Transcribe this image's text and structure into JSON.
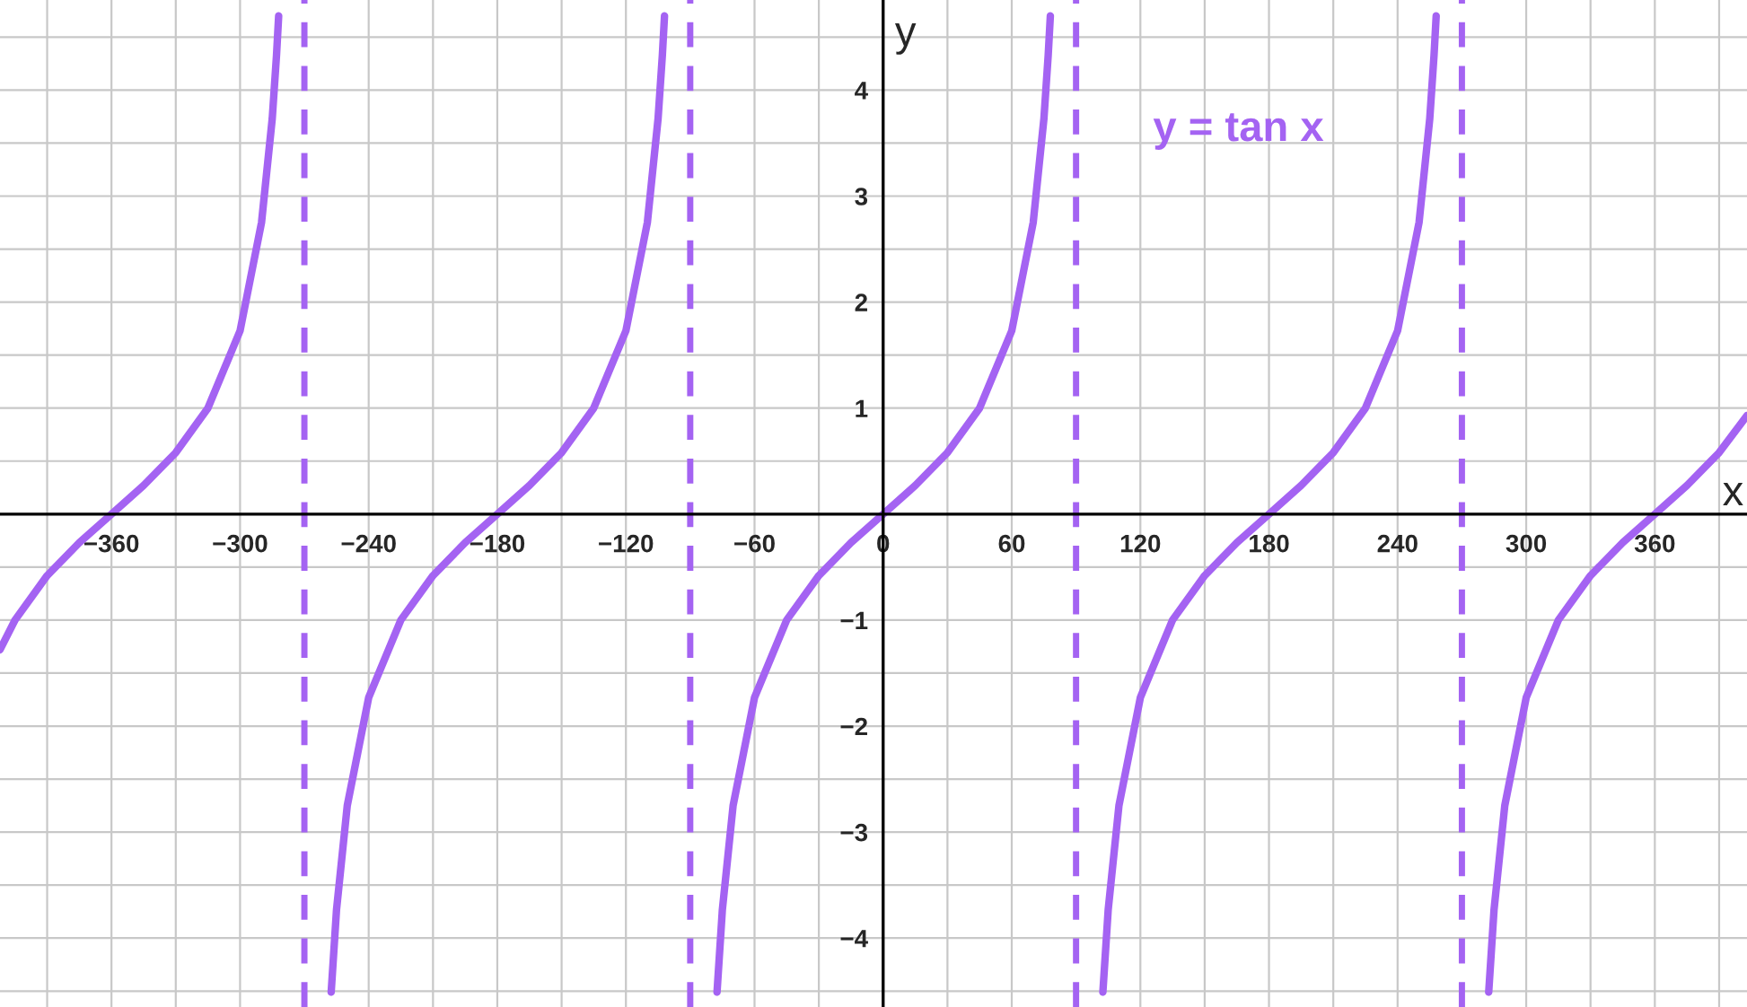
{
  "chart_data": {
    "type": "line",
    "xlabel": "x",
    "ylabel": "y",
    "xlim": [
      -412,
      403
    ],
    "ylim": [
      -4.65,
      4.85
    ],
    "xticks": [
      {
        "value": -390,
        "label": null
      },
      {
        "value": -360,
        "label": "−360"
      },
      {
        "value": -330,
        "label": null
      },
      {
        "value": -300,
        "label": "−300"
      },
      {
        "value": -240,
        "label": "−240"
      },
      {
        "value": -210,
        "label": null
      },
      {
        "value": -180,
        "label": "−180"
      },
      {
        "value": -150,
        "label": null
      },
      {
        "value": -120,
        "label": "−120"
      },
      {
        "value": -60,
        "label": "−60"
      },
      {
        "value": -30,
        "label": null
      },
      {
        "value": 0,
        "label": "0"
      },
      {
        "value": 30,
        "label": null
      },
      {
        "value": 60,
        "label": "60"
      },
      {
        "value": 120,
        "label": "120"
      },
      {
        "value": 150,
        "label": null
      },
      {
        "value": 180,
        "label": "180"
      },
      {
        "value": 210,
        "label": null
      },
      {
        "value": 240,
        "label": "240"
      },
      {
        "value": 300,
        "label": "300"
      },
      {
        "value": 330,
        "label": null
      },
      {
        "value": 360,
        "label": "360"
      },
      {
        "value": 390,
        "label": null
      }
    ],
    "yticks": [
      {
        "value": -4.5,
        "label": null
      },
      {
        "value": -4,
        "label": "−4"
      },
      {
        "value": -3.5,
        "label": null
      },
      {
        "value": -3,
        "label": "−3"
      },
      {
        "value": -2.5,
        "label": null
      },
      {
        "value": -2,
        "label": "−2"
      },
      {
        "value": -1.5,
        "label": null
      },
      {
        "value": -1,
        "label": "−1"
      },
      {
        "value": -0.5,
        "label": null
      },
      {
        "value": 0,
        "label": null
      },
      {
        "value": 0.5,
        "label": null
      },
      {
        "value": 1,
        "label": "1"
      },
      {
        "value": 1.5,
        "label": null
      },
      {
        "value": 2,
        "label": "2"
      },
      {
        "value": 2.5,
        "label": null
      },
      {
        "value": 3,
        "label": "3"
      },
      {
        "value": 3.5,
        "label": null
      },
      {
        "value": 4,
        "label": "4"
      },
      {
        "value": 4.5,
        "label": null
      }
    ],
    "grid": true,
    "legend": false,
    "marker": "none",
    "line_style": "solid",
    "series": [
      {
        "name": "y = tan x",
        "color": "#a463f2",
        "x": [
          -412,
          -405,
          -390,
          -375,
          -360,
          -345,
          -330,
          -315,
          -300,
          -290,
          -285,
          -283,
          -282,
          -270,
          -257.5,
          -255,
          -250,
          -240,
          -225,
          -210,
          -195,
          -180,
          -165,
          -150,
          -135,
          -120,
          -110,
          -105,
          -103,
          -102,
          -90,
          -77.5,
          -75,
          -70,
          -60,
          -45,
          -30,
          -15,
          0,
          15,
          30,
          45,
          60,
          70,
          75,
          77,
          78,
          90,
          102.5,
          105,
          110,
          120,
          135,
          150,
          165,
          180,
          195,
          210,
          225,
          240,
          250,
          255,
          257,
          258,
          270,
          282.5,
          285,
          290,
          300,
          315,
          330,
          345,
          360,
          375,
          390,
          403
        ],
        "values": [
          -1.28,
          -1,
          -0.58,
          -0.27,
          0,
          0.27,
          0.58,
          1,
          1.73,
          2.75,
          3.73,
          4.33,
          4.7,
          null,
          -4.51,
          -3.73,
          -2.75,
          -1.73,
          -1,
          -0.58,
          -0.27,
          0,
          0.27,
          0.58,
          1,
          1.73,
          2.75,
          3.73,
          4.33,
          4.7,
          null,
          -4.51,
          -3.73,
          -2.75,
          -1.73,
          -1,
          -0.58,
          -0.27,
          0,
          0.27,
          0.58,
          1,
          1.73,
          2.75,
          3.73,
          4.33,
          4.7,
          null,
          -4.51,
          -3.73,
          -2.75,
          -1.73,
          -1,
          -0.58,
          -0.27,
          0,
          0.27,
          0.58,
          1,
          1.73,
          2.75,
          3.73,
          4.33,
          4.7,
          null,
          -4.51,
          -3.73,
          -2.75,
          -1.73,
          -1,
          -0.58,
          -0.27,
          0,
          0.27,
          0.58,
          0.93
        ]
      }
    ],
    "ref_lines": [
      {
        "axis": "x",
        "value": -270,
        "color": "#a463f2",
        "line_style": "dashed"
      },
      {
        "axis": "x",
        "value": -90,
        "color": "#a463f2",
        "line_style": "dashed"
      },
      {
        "axis": "x",
        "value": 90,
        "color": "#a463f2",
        "line_style": "dashed"
      },
      {
        "axis": "x",
        "value": 270,
        "color": "#a463f2",
        "line_style": "dashed"
      }
    ]
  }
}
